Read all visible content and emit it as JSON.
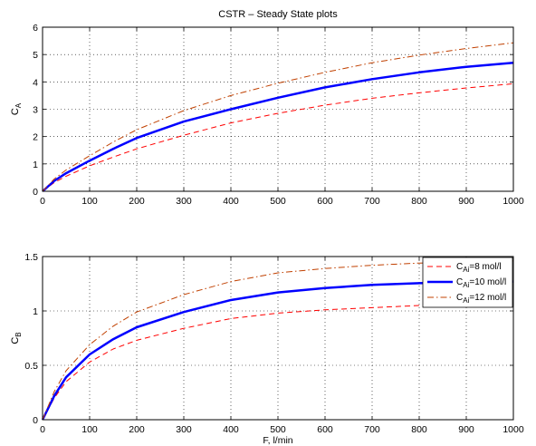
{
  "figure": {
    "title": "CSTR – Steady State plots"
  },
  "chart_data": [
    {
      "type": "line",
      "title": "CSTR – Steady State plots",
      "xlabel": "",
      "ylabel": {
        "main": "C",
        "sub": "A"
      },
      "xlim": [
        0,
        1000
      ],
      "ylim": [
        0,
        6
      ],
      "xticks": [
        "0",
        "100",
        "200",
        "300",
        "400",
        "500",
        "600",
        "700",
        "800",
        "900",
        "1000"
      ],
      "yticks": [
        "0",
        "1",
        "2",
        "3",
        "4",
        "5",
        "6"
      ],
      "grid": true,
      "x": [
        0,
        25,
        50,
        100,
        150,
        200,
        300,
        400,
        500,
        600,
        700,
        800,
        900,
        1000
      ],
      "series": [
        {
          "key": "cai8",
          "color": "#ff0000",
          "style": "dashed",
          "width": 1,
          "values": [
            0,
            0.32,
            0.55,
            0.93,
            1.25,
            1.55,
            2.05,
            2.5,
            2.85,
            3.15,
            3.4,
            3.6,
            3.78,
            3.93
          ]
        },
        {
          "key": "cai10",
          "color": "#0000ff",
          "style": "solid",
          "width": 2.5,
          "values": [
            0,
            0.38,
            0.66,
            1.12,
            1.55,
            1.95,
            2.55,
            3.0,
            3.42,
            3.8,
            4.1,
            4.35,
            4.55,
            4.7
          ]
        },
        {
          "key": "cai12",
          "color": "#c04000",
          "style": "dashdot",
          "width": 1,
          "values": [
            0,
            0.45,
            0.78,
            1.3,
            1.8,
            2.25,
            2.95,
            3.5,
            3.95,
            4.35,
            4.7,
            4.98,
            5.22,
            5.43
          ]
        }
      ]
    },
    {
      "type": "line",
      "title": "",
      "xlabel": "F, l/min",
      "ylabel": {
        "main": "C",
        "sub": "B"
      },
      "xlim": [
        0,
        1000
      ],
      "ylim": [
        0,
        1.5
      ],
      "xticks": [
        "0",
        "100",
        "200",
        "300",
        "400",
        "500",
        "600",
        "700",
        "800",
        "900",
        "1000"
      ],
      "yticks": [
        "0",
        "0.5",
        "1",
        "1.5"
      ],
      "grid": true,
      "legend_position": "top-right",
      "x": [
        0,
        25,
        50,
        100,
        150,
        200,
        300,
        400,
        500,
        600,
        700,
        800,
        900,
        1000
      ],
      "series": [
        {
          "key": "cai8",
          "color": "#ff0000",
          "style": "dashed",
          "width": 1,
          "values": [
            0,
            0.2,
            0.35,
            0.53,
            0.65,
            0.73,
            0.84,
            0.93,
            0.98,
            1.01,
            1.03,
            1.05,
            1.06,
            1.06
          ]
        },
        {
          "key": "cai10",
          "color": "#0000ff",
          "style": "solid",
          "width": 2.5,
          "values": [
            0,
            0.22,
            0.39,
            0.6,
            0.74,
            0.85,
            0.99,
            1.1,
            1.17,
            1.21,
            1.24,
            1.255,
            1.265,
            1.27
          ]
        },
        {
          "key": "cai12",
          "color": "#c04000",
          "style": "dashdot",
          "width": 1,
          "values": [
            0,
            0.26,
            0.45,
            0.69,
            0.86,
            0.99,
            1.15,
            1.27,
            1.35,
            1.39,
            1.42,
            1.44,
            1.45,
            1.46
          ]
        }
      ],
      "legend": [
        {
          "key": "cai8",
          "main": "C",
          "sub": "Ai",
          "rest": "=8 mol/l"
        },
        {
          "key": "cai10",
          "main": "C",
          "sub": "Ai",
          "rest": "=10 mol/l"
        },
        {
          "key": "cai12",
          "main": "C",
          "sub": "Ai",
          "rest": "=12 mol/l"
        }
      ]
    }
  ]
}
